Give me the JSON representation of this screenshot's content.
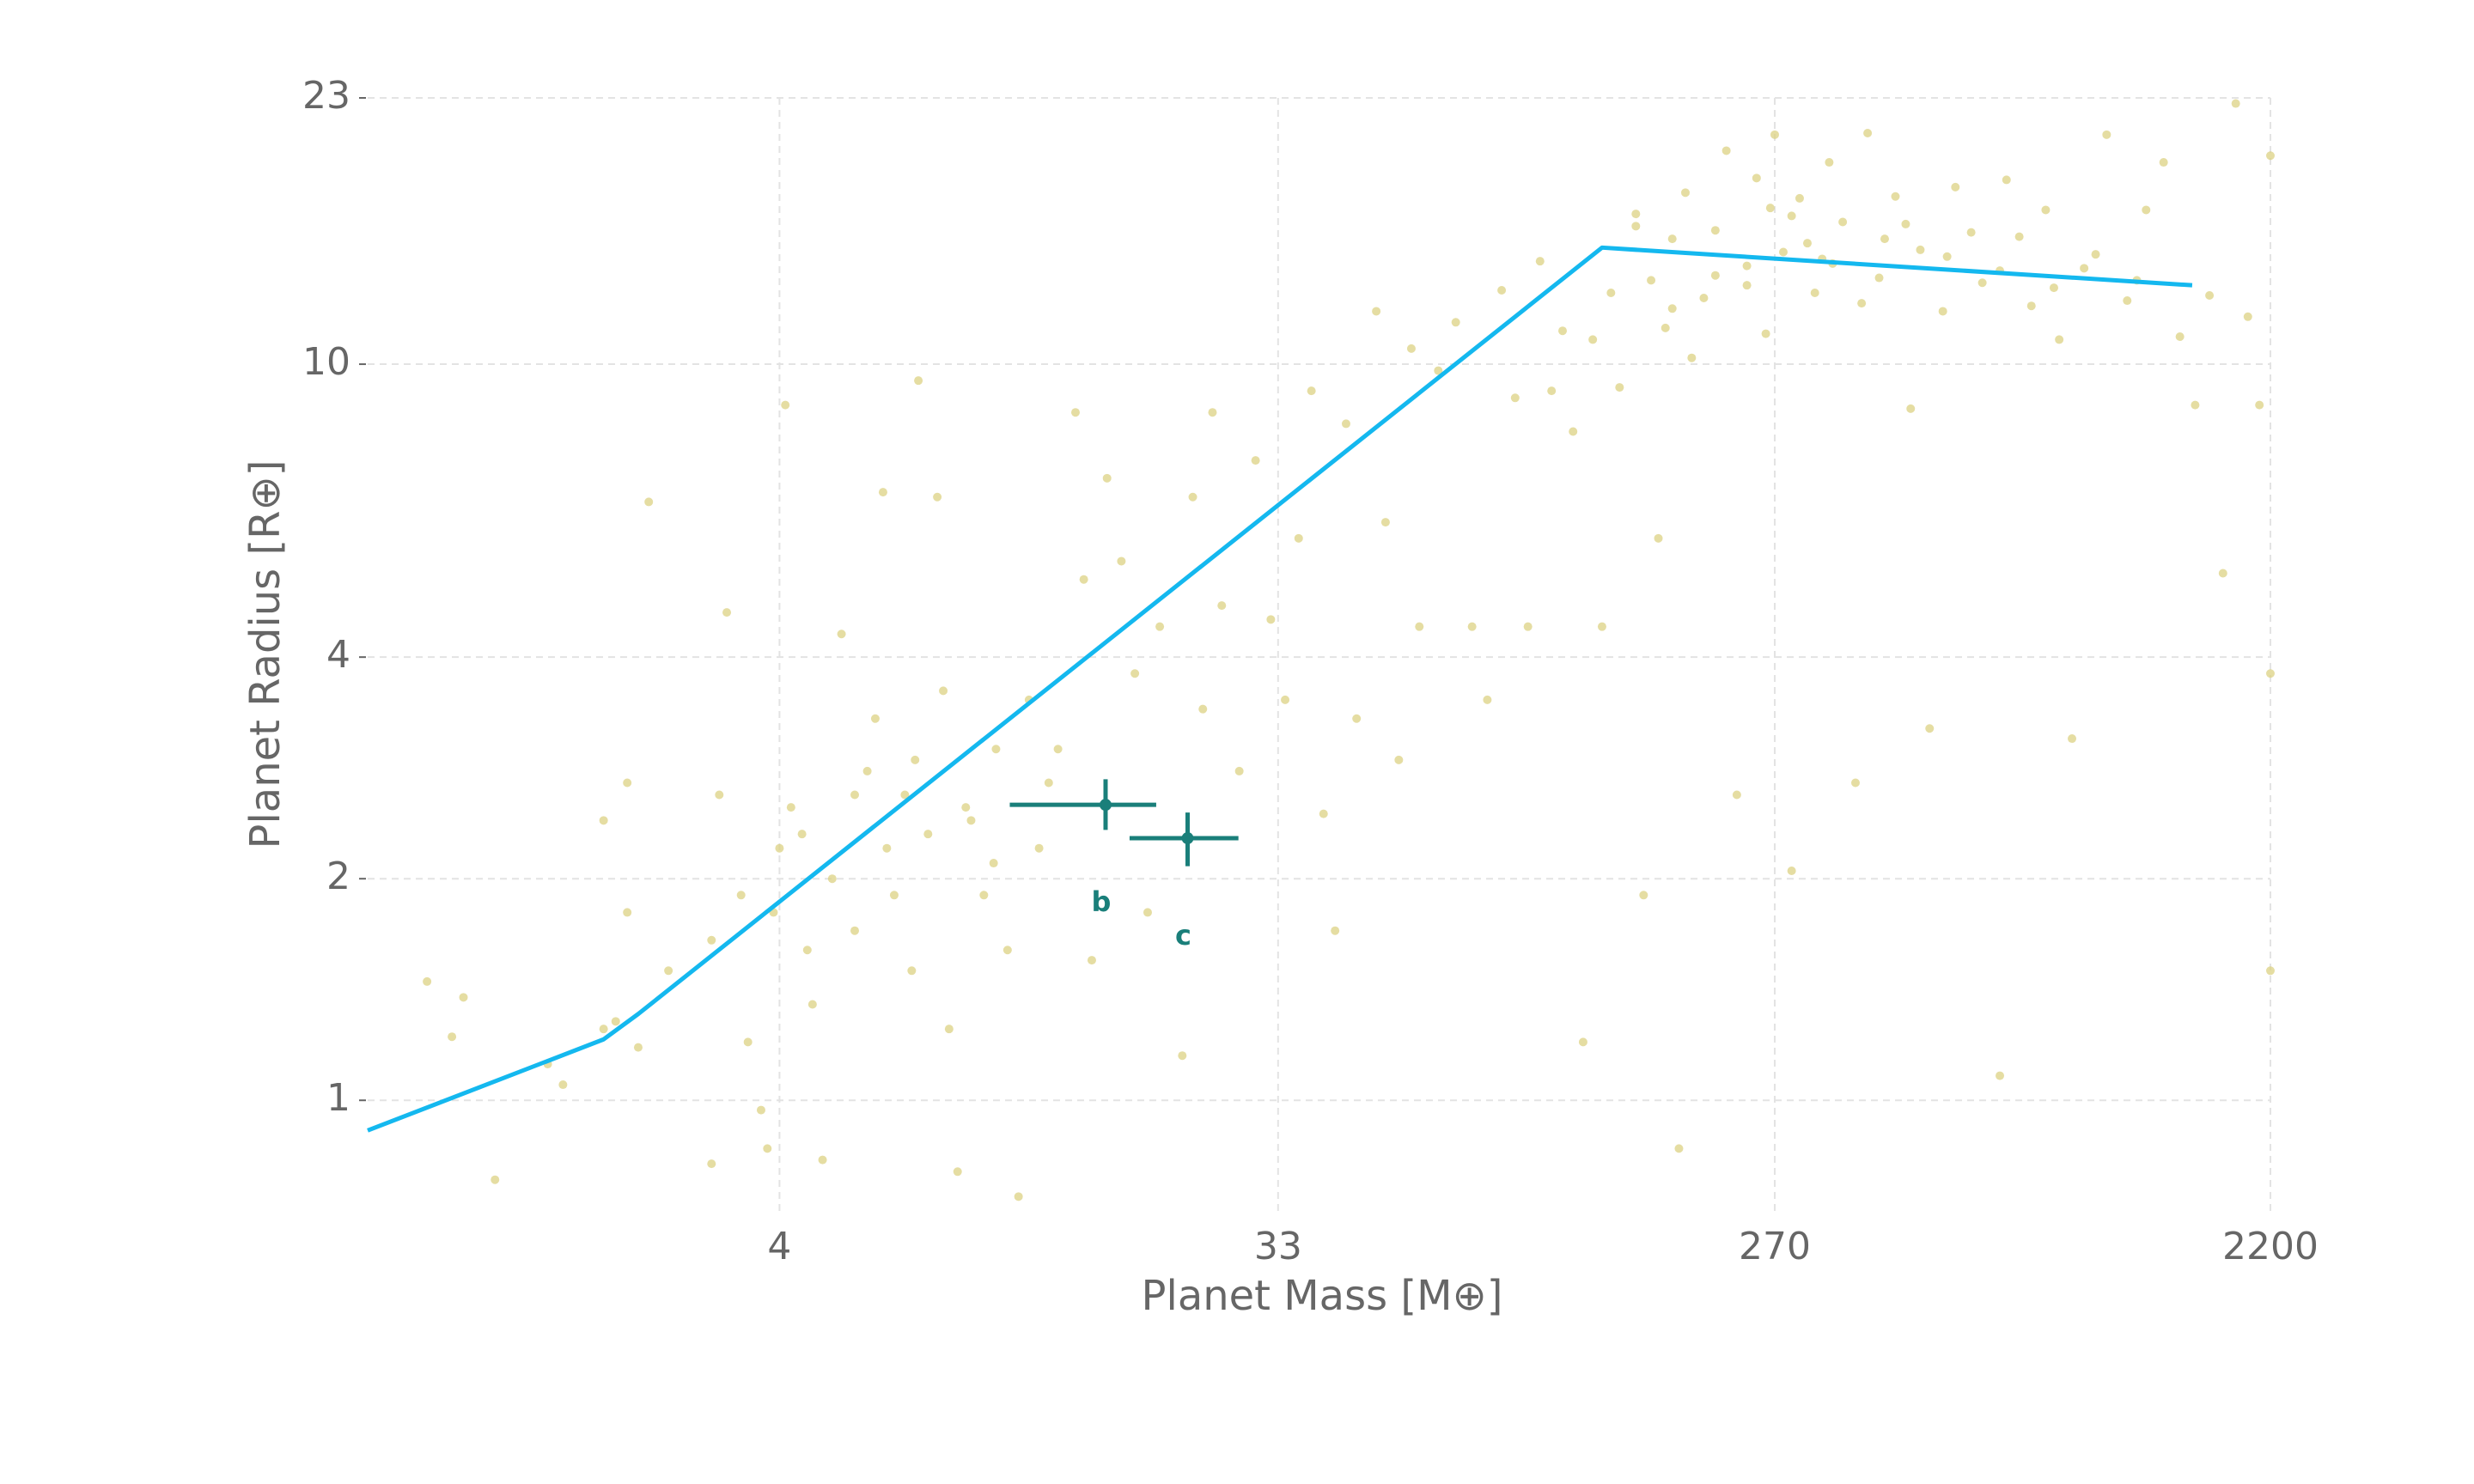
{
  "chart_data": {
    "type": "scatter",
    "xlabel": "Planet Mass [M⊕]",
    "ylabel": "Planet Radius [R⊕]",
    "xscale": "log",
    "yscale": "log",
    "xlim": [
      0.7,
      2200
    ],
    "ylim": [
      0.7,
      23
    ],
    "xticks": [
      4,
      33,
      270,
      2200
    ],
    "yticks": [
      1,
      2,
      4,
      10,
      23
    ],
    "grid": true,
    "scatter": {
      "color": "#dcd183",
      "x": [
        0.9,
        1.0,
        1.05,
        1.2,
        1.5,
        1.6,
        1.9,
        2.0,
        2.2,
        1.9,
        2.1,
        2.1,
        2.3,
        2.5,
        3.0,
        3.0,
        3.1,
        3.2,
        3.5,
        3.7,
        3.8,
        3.9,
        4.0,
        4.1,
        4.2,
        4.5,
        4.6,
        4.8,
        5.0,
        5.2,
        5.5,
        5.8,
        6.0,
        6.2,
        6.5,
        6.8,
        7.0,
        7.2,
        7.5,
        7.8,
        8.0,
        8.2,
        8.5,
        9.0,
        9.5,
        10,
        10.5,
        11,
        11.5,
        12,
        13,
        14,
        14.5,
        15,
        16,
        17,
        18,
        19,
        20,
        22,
        23,
        24,
        25,
        26,
        28,
        30,
        32,
        34,
        36,
        38,
        40,
        42,
        44,
        46,
        50,
        52,
        55,
        58,
        60,
        65,
        70,
        75,
        80,
        85,
        90,
        95,
        100,
        105,
        110,
        115,
        120,
        125,
        130,
        135,
        140,
        150,
        155,
        160,
        165,
        170,
        175,
        180,
        185,
        190,
        200,
        210,
        220,
        230,
        240,
        250,
        260,
        270,
        280,
        290,
        300,
        320,
        340,
        360,
        380,
        400,
        420,
        450,
        480,
        500,
        520,
        550,
        580,
        620,
        650,
        700,
        720,
        760,
        800,
        850,
        900,
        950,
        1000,
        1100,
        1200,
        1300,
        1400,
        1500,
        1600,
        1700,
        1800,
        1900,
        2000,
        2100,
        2200,
        2200,
        2200,
        5.5,
        6.3,
        7.1,
        8.8,
        9.9,
        12.5,
        3.4,
        4.4,
        210,
        240,
        310,
        330,
        390,
        470,
        560,
        700,
        880,
        1050,
        1250,
        150,
        175,
        265,
        290,
        345,
        430
      ],
      "y": [
        1.45,
        1.22,
        1.38,
        0.78,
        1.12,
        1.05,
        1.25,
        1.28,
        1.18,
        2.4,
        2.7,
        1.8,
        6.5,
        1.5,
        0.82,
        1.65,
        2.6,
        4.6,
        1.2,
        0.97,
        0.86,
        1.8,
        2.2,
        8.8,
        2.5,
        1.6,
        1.35,
        0.83,
        2.0,
        4.3,
        1.7,
        2.8,
        3.3,
        6.7,
        1.9,
        2.6,
        1.5,
        9.5,
        2.3,
        6.6,
        3.6,
        1.25,
        0.8,
        2.4,
        1.9,
        3.0,
        1.6,
        0.74,
        3.5,
        2.2,
        3.0,
        8.6,
        5.1,
        1.55,
        7.0,
        5.4,
        3.8,
        1.8,
        4.4,
        1.15,
        6.6,
        3.4,
        8.6,
        4.7,
        2.8,
        7.4,
        4.5,
        3.5,
        5.8,
        9.2,
        2.45,
        1.7,
        8.3,
        3.3,
        11.8,
        6.1,
        2.9,
        10.5,
        4.4,
        9.8,
        11.4,
        4.4,
        3.5,
        12.6,
        9.0,
        4.4,
        13.8,
        9.2,
        11.1,
        8.1,
        1.2,
        10.8,
        4.4,
        12.5,
        9.3,
        16.0,
        1.9,
        13.0,
        5.8,
        11.2,
        14.8,
        0.86,
        17.1,
        10.2,
        12.3,
        15.2,
        19.5,
        2.6,
        13.6,
        17.9,
        11.0,
        20.5,
        14.2,
        2.05,
        16.8,
        12.5,
        18.8,
        15.6,
        2.7,
        20.6,
        13.1,
        16.9,
        8.7,
        14.3,
        3.2,
        11.8,
        17.4,
        15.1,
        12.9,
        1.08,
        17.8,
        14.9,
        12.0,
        16.2,
        10.8,
        3.1,
        13.5,
        20.5,
        12.2,
        16.2,
        18.8,
        10.9,
        8.8,
        12.4,
        5.2,
        22.6,
        11.6,
        8.8,
        3.8,
        1.5,
        19.2,
        2.6,
        2.2,
        2.9,
        2.5,
        2.1,
        2.7,
        1.9,
        2.3,
        13.2,
        12.8,
        14.6,
        13.9,
        12.1,
        15.5,
        14.0,
        13.4,
        12.7,
        14.1,
        13.0,
        15.4,
        11.9,
        16.3,
        15.9,
        13.7,
        14.8
      ]
    },
    "line": {
      "type": "line",
      "color": "#14b8ef",
      "x": [
        0.7,
        1.9,
        2.2,
        130,
        1580
      ],
      "y": [
        0.91,
        1.21,
        1.31,
        14.4,
        12.8
      ]
    },
    "planets": {
      "color": "#1a7f7a",
      "labels": [
        "b",
        "c"
      ],
      "x": [
        15.9,
        22.5
      ],
      "x_err": [
        [
          5.3,
          3.8
        ],
        [
          4.9,
          5.4
        ]
      ],
      "y": [
        2.52,
        2.27
      ],
      "y_err": [
        [
          0.19,
          0.21
        ],
        [
          0.19,
          0.19
        ]
      ]
    }
  }
}
